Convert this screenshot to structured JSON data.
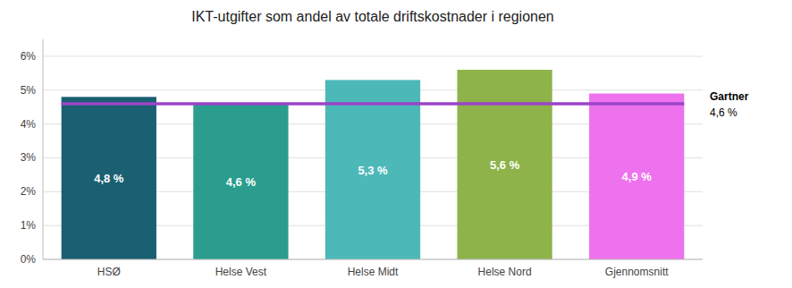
{
  "chart_data": {
    "type": "bar",
    "title": "IKT-utgifter som andel av totale driftskostnader i regionen",
    "categories": [
      "HSØ",
      "Helse Vest",
      "Helse Midt",
      "Helse Nord",
      "Gjennomsnitt"
    ],
    "values": [
      4.8,
      4.6,
      5.3,
      5.6,
      4.9
    ],
    "value_labels": [
      "4,8 %",
      "4,6 %",
      "5,3 %",
      "5,6 %",
      "4,9 %"
    ],
    "data_labels": true,
    "colors": [
      "#1a5f72",
      "#2a9d8f",
      "#4db8b8",
      "#8db34a",
      "#ee72ee"
    ],
    "ylim": [
      0,
      6.5
    ],
    "yticks": [
      {
        "value": 0,
        "label": "0%"
      },
      {
        "value": 1,
        "label": "1%"
      },
      {
        "value": 2,
        "label": "2%"
      },
      {
        "value": 3,
        "label": "3%"
      },
      {
        "value": 4,
        "label": "4%"
      },
      {
        "value": 5,
        "label": "5%"
      },
      {
        "value": 6,
        "label": "6%"
      }
    ],
    "grid": true,
    "reference_lines": [
      {
        "name": "Gartner",
        "value": 4.6,
        "value_label": "4,6 %",
        "color": "#9b44c8"
      }
    ]
  }
}
